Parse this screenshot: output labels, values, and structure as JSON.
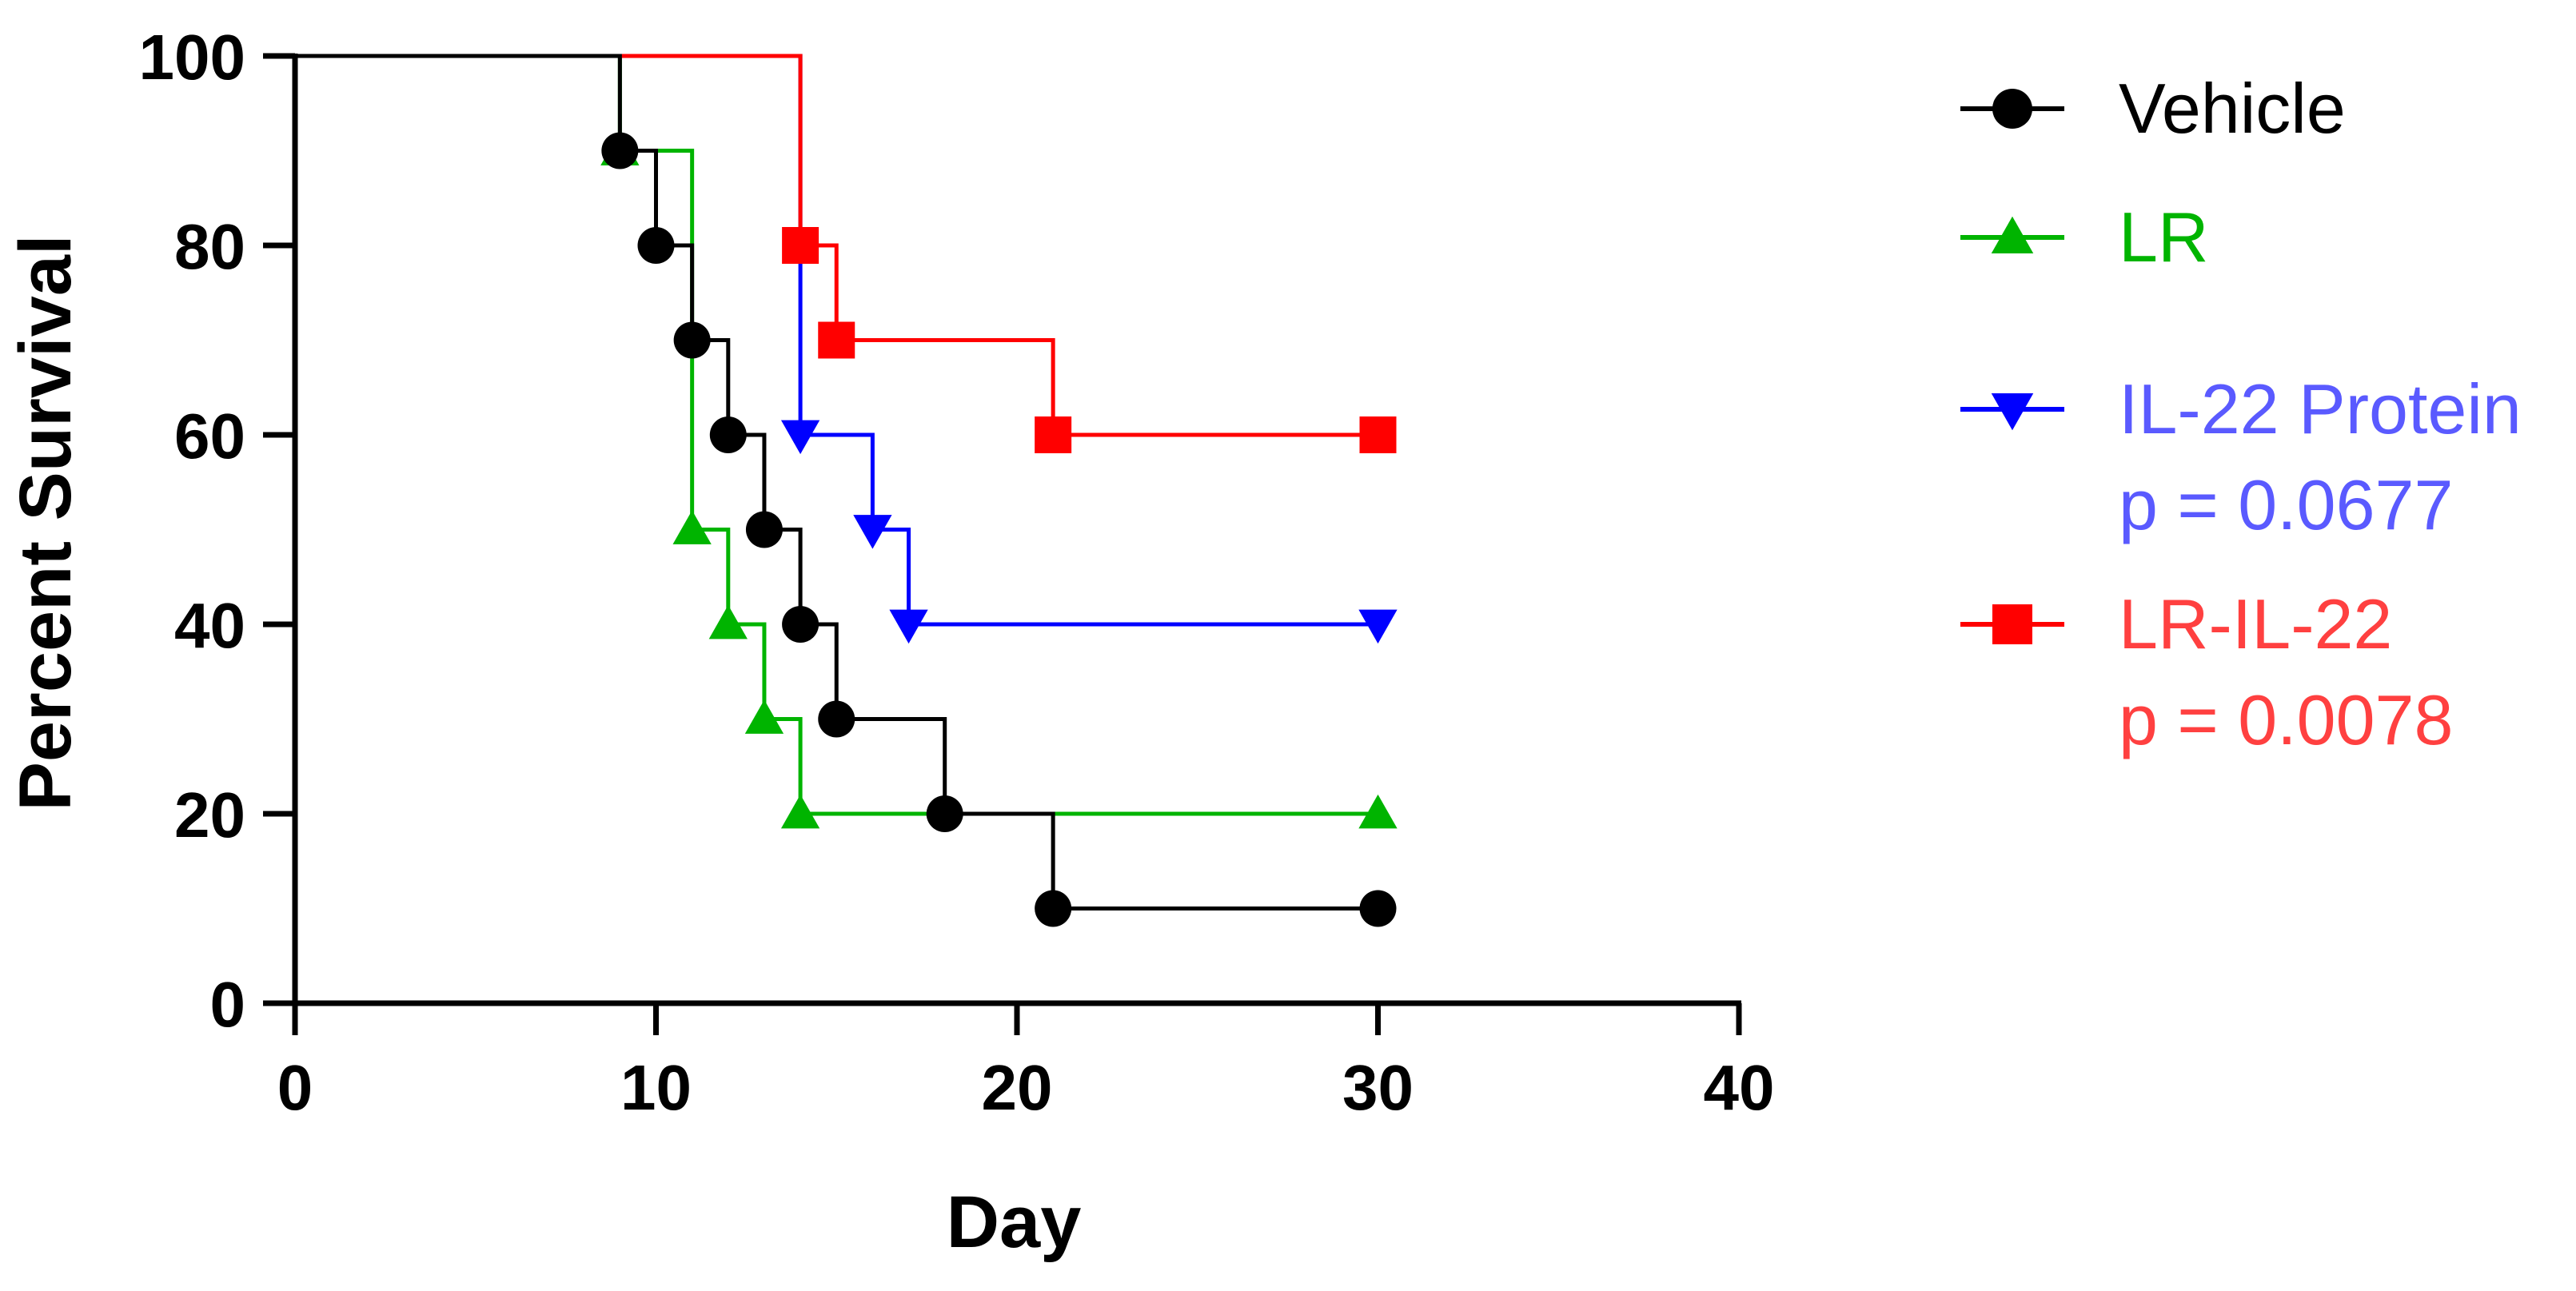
{
  "chart_data": {
    "type": "line",
    "subtype": "kaplan-meier-step",
    "xlabel": "Day",
    "ylabel": "Percent Survival",
    "xlim": [
      0,
      40
    ],
    "ylim": [
      0,
      100
    ],
    "x_ticks": [
      0,
      10,
      20,
      30,
      40
    ],
    "y_ticks": [
      0,
      20,
      40,
      60,
      80,
      100
    ],
    "x_tick_labels": [
      "0",
      "10",
      "20",
      "30",
      "40"
    ],
    "y_tick_labels": [
      "0",
      "20",
      "40",
      "60",
      "80",
      "100"
    ],
    "grid": false,
    "legend_position": "right",
    "series": [
      {
        "name": "Vehicle",
        "legend_lines": [
          "Vehicle"
        ],
        "color": "#000000",
        "text_color": "#000000",
        "marker": "circle",
        "step_points": [
          [
            0,
            100
          ],
          [
            9,
            90
          ],
          [
            10,
            80
          ],
          [
            11,
            70
          ],
          [
            12,
            60
          ],
          [
            13,
            50
          ],
          [
            14,
            40
          ],
          [
            15,
            30
          ],
          [
            18,
            20
          ],
          [
            21,
            10
          ],
          [
            30,
            10
          ]
        ],
        "marker_points": [
          [
            9,
            90
          ],
          [
            10,
            80
          ],
          [
            11,
            70
          ],
          [
            12,
            60
          ],
          [
            13,
            50
          ],
          [
            14,
            40
          ],
          [
            15,
            30
          ],
          [
            18,
            20
          ],
          [
            21,
            10
          ],
          [
            30,
            10
          ]
        ]
      },
      {
        "name": "LR",
        "legend_lines": [
          "LR"
        ],
        "color": "#00b400",
        "text_color": "#00b400",
        "marker": "triangle-up",
        "step_points": [
          [
            0,
            100
          ],
          [
            9,
            90
          ],
          [
            11,
            50
          ],
          [
            12,
            40
          ],
          [
            13,
            30
          ],
          [
            14,
            20
          ],
          [
            30,
            20
          ]
        ],
        "marker_points": [
          [
            9,
            90
          ],
          [
            11,
            50
          ],
          [
            12,
            40
          ],
          [
            13,
            30
          ],
          [
            14,
            20
          ],
          [
            30,
            20
          ]
        ]
      },
      {
        "name": "IL-22 Protein",
        "legend_lines": [
          "IL-22 Protein",
          "p = 0.0677"
        ],
        "color": "#0000ff",
        "text_color": "#5a5aff",
        "marker": "triangle-down",
        "step_points": [
          [
            0,
            100
          ],
          [
            14,
            60
          ],
          [
            16,
            50
          ],
          [
            17,
            40
          ],
          [
            30,
            40
          ]
        ],
        "marker_points": [
          [
            14,
            60
          ],
          [
            16,
            50
          ],
          [
            17,
            40
          ],
          [
            30,
            40
          ]
        ]
      },
      {
        "name": "LR-IL-22",
        "legend_lines": [
          "LR-IL-22",
          "p = 0.0078"
        ],
        "color": "#ff0000",
        "text_color": "#ff4040",
        "marker": "square",
        "step_points": [
          [
            0,
            100
          ],
          [
            14,
            80
          ],
          [
            15,
            70
          ],
          [
            21,
            60
          ],
          [
            30,
            60
          ]
        ],
        "marker_points": [
          [
            14,
            80
          ],
          [
            15,
            70
          ],
          [
            21,
            60
          ],
          [
            30,
            60
          ]
        ]
      }
    ]
  }
}
